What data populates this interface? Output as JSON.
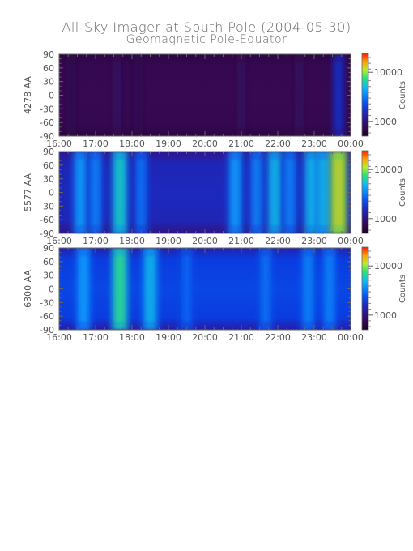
{
  "title": "All-Sky Imager at South Pole (2004-05-30)",
  "subtitle": "Geomagnetic Pole-Equator",
  "chart_data": [
    {
      "type": "heatmap",
      "ylabel": "4278 AA",
      "x_ticks": [
        "16:00",
        "17:00",
        "18:00",
        "19:00",
        "20:00",
        "21:00",
        "22:00",
        "23:00",
        "00:00"
      ],
      "y_ticks": [
        90,
        60,
        30,
        0,
        -30,
        -60,
        -90
      ],
      "ylim": [
        -90,
        90
      ],
      "xlim": [
        "16:00",
        "00:00"
      ],
      "colorbar": {
        "label": "Counts",
        "ticks": [
          "10000",
          "1000"
        ],
        "scale": "log"
      },
      "features": [
        {
          "time": "16:20",
          "intensity": 0.08
        },
        {
          "time": "17:35",
          "intensity": 0.1
        },
        {
          "time": "18:10",
          "intensity": 0.08
        },
        {
          "time": "21:00",
          "intensity": 0.1
        },
        {
          "time": "22:35",
          "intensity": 0.1
        },
        {
          "time": "23:40",
          "intensity": 0.28
        }
      ]
    },
    {
      "type": "heatmap",
      "ylabel": "5577 AA",
      "x_ticks": [
        "16:00",
        "17:00",
        "18:00",
        "19:00",
        "20:00",
        "21:00",
        "22:00",
        "23:00",
        "00:00"
      ],
      "y_ticks": [
        90,
        60,
        30,
        0,
        -30,
        -60,
        -90
      ],
      "ylim": [
        -90,
        90
      ],
      "xlim": [
        "16:00",
        "00:00"
      ],
      "colorbar": {
        "label": "Counts",
        "ticks": [
          "10000",
          "1000"
        ],
        "scale": "log"
      },
      "features": [
        {
          "time": "16:35",
          "intensity": 0.5
        },
        {
          "time": "17:00",
          "intensity": 0.45
        },
        {
          "time": "17:40",
          "intensity": 0.6
        },
        {
          "time": "18:15",
          "intensity": 0.42
        },
        {
          "time": "20:50",
          "intensity": 0.5
        },
        {
          "time": "21:25",
          "intensity": 0.45
        },
        {
          "time": "21:55",
          "intensity": 0.55
        },
        {
          "time": "22:20",
          "intensity": 0.45
        },
        {
          "time": "22:55",
          "intensity": 0.55
        },
        {
          "time": "23:15",
          "intensity": 0.55
        },
        {
          "time": "23:40",
          "intensity": 0.78
        }
      ]
    },
    {
      "type": "heatmap",
      "ylabel": "6300 AA",
      "x_ticks": [
        "16:00",
        "17:00",
        "18:00",
        "19:00",
        "20:00",
        "21:00",
        "22:00",
        "23:00",
        "00:00"
      ],
      "y_ticks": [
        90,
        60,
        30,
        0,
        -30,
        -60,
        -90
      ],
      "ylim": [
        -90,
        90
      ],
      "xlim": [
        "16:00",
        "00:00"
      ],
      "colorbar": {
        "label": "Counts",
        "ticks": [
          "10000",
          "1000"
        ],
        "scale": "log"
      },
      "features": [
        {
          "time": "16:40",
          "intensity": 0.5
        },
        {
          "time": "17:40",
          "intensity": 0.65
        },
        {
          "time": "18:30",
          "intensity": 0.55
        },
        {
          "time": "19:30",
          "intensity": 0.4
        },
        {
          "time": "21:40",
          "intensity": 0.42
        },
        {
          "time": "22:50",
          "intensity": 0.45
        },
        {
          "time": "23:25",
          "intensity": 0.45
        }
      ]
    }
  ]
}
